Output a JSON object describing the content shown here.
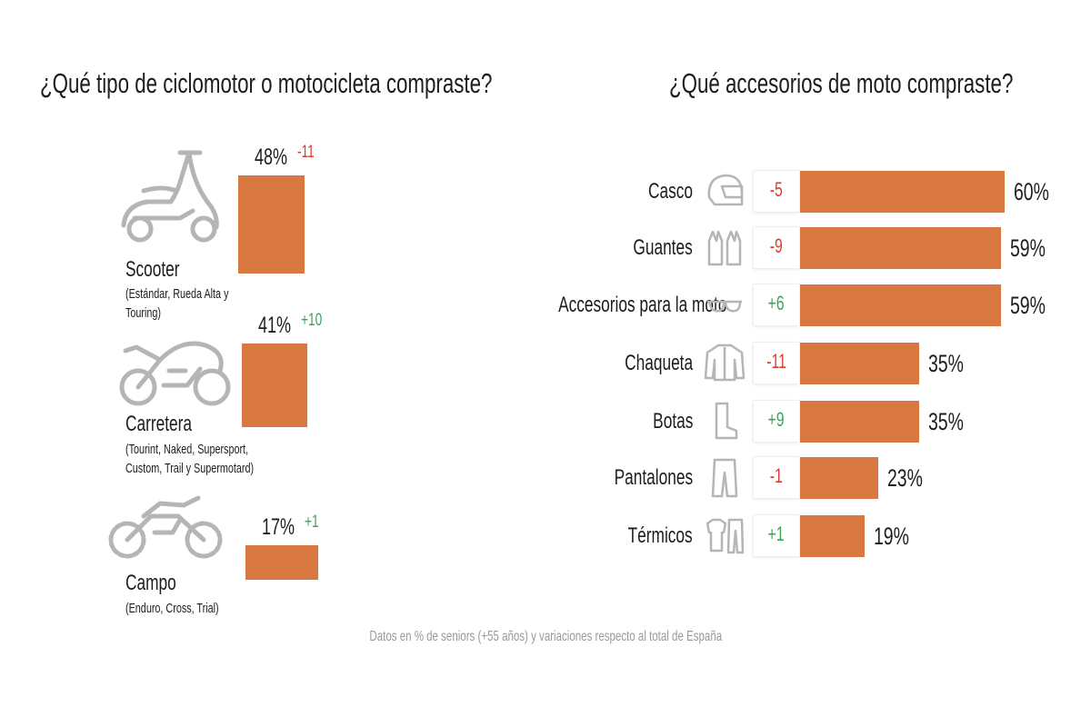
{
  "chart_data": [
    {
      "type": "bar",
      "title": "¿Qué tipo de ciclomotor o motocicleta compraste?",
      "categories": [
        "Scooter",
        "Carretera",
        "Campo"
      ],
      "subtitles": [
        "(Estándar, Rueda Alta y Touring)",
        "(Tourint, Naked, Supersport, Custom, Trail y Supermotard)",
        "(Enduro, Cross, Trial)"
      ],
      "values": [
        48,
        41,
        17
      ],
      "value_labels": [
        "48%",
        "41%",
        "17%"
      ],
      "variations": [
        "-11",
        "+10",
        "+1"
      ],
      "icons": [
        "scooter-icon",
        "road-motorcycle-icon",
        "dirt-bike-icon"
      ]
    },
    {
      "type": "bar",
      "title": "¿Qué accesorios de moto compraste?",
      "categories": [
        "Casco",
        "Guantes",
        "Accesorios para la moto",
        "Chaqueta",
        "Botas",
        "Pantalones",
        "Térmicos"
      ],
      "values": [
        60,
        59,
        59,
        35,
        35,
        23,
        19
      ],
      "value_labels": [
        "60%",
        "59%",
        "59%",
        "35%",
        "35%",
        "23%",
        "19%"
      ],
      "variations": [
        "-5",
        "-9",
        "+6",
        "-11",
        "+9",
        "-1",
        "+1"
      ],
      "icons": [
        "helmet-icon",
        "gloves-icon",
        "glasses-icon",
        "jacket-icon",
        "boot-icon",
        "pants-icon",
        "thermal-wear-icon"
      ]
    }
  ],
  "footnote": "Datos en % de seniors (+55 años) y variaciones respecto al total de España",
  "colors": {
    "bar": "#d97941",
    "negative": "#e03a2a",
    "positive": "#3aa55a",
    "icon": "#b5b5b5"
  }
}
